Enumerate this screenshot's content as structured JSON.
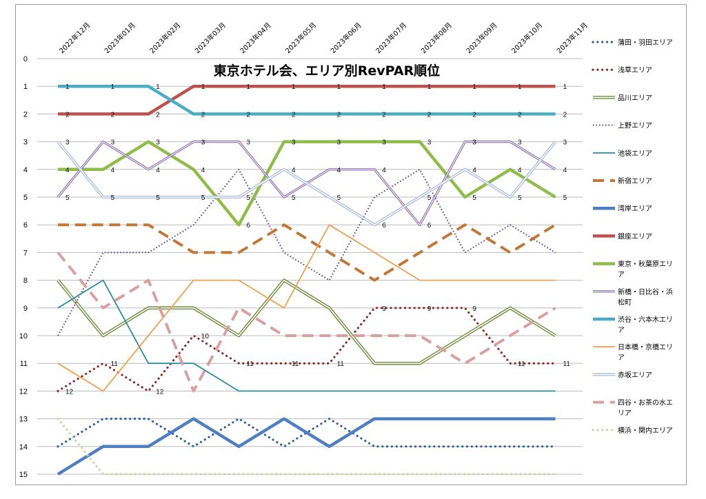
{
  "chart_data": {
    "type": "line",
    "title": "東京ホテル会、エリア別RevPAR順位",
    "categories": [
      "2022年12月",
      "2023年01月",
      "2023年02月",
      "2023年03月",
      "2023年04月",
      "2023年05月",
      "2023年06月",
      "2023年07月",
      "2023年08月",
      "2023年09月",
      "2023年10月",
      "2023年11月"
    ],
    "y_ticks": [
      "0",
      "1",
      "2",
      "3",
      "4",
      "5",
      "6",
      "7",
      "8",
      "9",
      "10",
      "11",
      "12",
      "13",
      "14",
      "15"
    ],
    "ylim": [
      0,
      15
    ],
    "y_reversed": true,
    "grid": true,
    "legend_position": "right",
    "series": [
      {
        "name": "蒲田・羽田エリア",
        "values": [
          14,
          13,
          13,
          14,
          13,
          14,
          13,
          14,
          14,
          14,
          14,
          14
        ],
        "color": "#2f5f9a",
        "style": "dotted",
        "width": 3.2
      },
      {
        "name": "浅草エリア",
        "values": [
          12,
          11,
          12,
          10,
          11,
          11,
          11,
          9,
          9,
          9,
          11,
          11
        ],
        "color": "#8b2a2a",
        "style": "dotted",
        "width": 3.2,
        "labels": [
          0,
          1,
          2,
          3,
          4,
          5,
          6,
          7,
          8,
          9,
          10,
          11
        ]
      },
      {
        "name": "品川エリア",
        "values": [
          8,
          10,
          9,
          9,
          10,
          8,
          9,
          11,
          11,
          10,
          9,
          10
        ],
        "color": "#6e8a3a",
        "style": "double",
        "width": 4.5
      },
      {
        "name": "上野エリア",
        "values": [
          10,
          7,
          7,
          6,
          4,
          7,
          8,
          5,
          4,
          7,
          6,
          7
        ],
        "color": "#4a3a7a",
        "style": "dotted",
        "width": 2
      },
      {
        "name": "池袋エリア",
        "values": [
          9,
          8,
          11,
          11,
          12,
          12,
          12,
          12,
          12,
          12,
          12,
          12
        ],
        "color": "#2e8b9a",
        "style": "solid",
        "width": 1.8
      },
      {
        "name": "新宿エリア",
        "values": [
          6,
          6,
          6,
          7,
          7,
          6,
          7,
          8,
          7,
          6,
          7,
          6
        ],
        "color": "#c0783a",
        "style": "dashed",
        "width": 4
      },
      {
        "name": "湾岸エリア",
        "values": [
          15,
          14,
          14,
          13,
          14,
          13,
          14,
          13,
          13,
          13,
          13,
          13
        ],
        "color": "#4f7fc0",
        "style": "solid",
        "width": 4.5
      },
      {
        "name": "銀座エリア",
        "values": [
          2,
          2,
          2,
          1,
          1,
          1,
          1,
          1,
          1,
          1,
          1,
          1
        ],
        "color": "#c0504d",
        "style": "solid",
        "width": 4.5,
        "labels": [
          0,
          1,
          2,
          3,
          4,
          5,
          6,
          7,
          8,
          9,
          10,
          11
        ]
      },
      {
        "name": "東京・秋葉原エリア",
        "values": [
          4,
          4,
          3,
          4,
          6,
          3,
          3,
          3,
          3,
          5,
          4,
          5
        ],
        "color": "#8fbc4a",
        "style": "solid",
        "width": 4.5
      },
      {
        "name": "新橋・日比谷・浜松町",
        "values": [
          5,
          3,
          4,
          3,
          3,
          5,
          4,
          4,
          6,
          3,
          3,
          4
        ],
        "color": "#7a5aa0",
        "style": "double",
        "width": 3.2
      },
      {
        "name": "渋谷・六本木エリア",
        "values": [
          1,
          1,
          1,
          2,
          2,
          2,
          2,
          2,
          2,
          2,
          2,
          2
        ],
        "color": "#4bacc6",
        "style": "solid",
        "width": 4.5,
        "labels": [
          0,
          1,
          2,
          3,
          4,
          5,
          6,
          7,
          8,
          9,
          10,
          11
        ]
      },
      {
        "name": "日本橋・京橋エリア",
        "values": [
          11,
          12,
          10,
          8,
          8,
          9,
          6,
          7,
          8,
          8,
          8,
          8
        ],
        "color": "#f0a050",
        "style": "solid",
        "width": 1.8
      },
      {
        "name": "赤坂エリア",
        "values": [
          3,
          5,
          5,
          5,
          5,
          4,
          5,
          6,
          5,
          4,
          5,
          3
        ],
        "color": "#a8b8d8",
        "style": "double",
        "width": 4
      },
      {
        "name": "四谷・お茶の水エリア",
        "values": [
          7,
          9,
          8,
          12,
          9,
          10,
          10,
          10,
          10,
          11,
          10,
          9
        ],
        "color": "#d8a0a0",
        "style": "dashed",
        "width": 4
      },
      {
        "name": "横浜・関内エリア",
        "values": [
          13,
          15,
          15,
          15,
          15,
          15,
          15,
          15,
          15,
          15,
          15,
          15
        ],
        "color": "#c4d8a0",
        "style": "dotted",
        "width": 3.2
      }
    ],
    "point_labels": [
      {
        "x": 0,
        "y": 1,
        "text": "1"
      },
      {
        "x": 1,
        "y": 1,
        "text": "1"
      },
      {
        "x": 2,
        "y": 1,
        "text": "1"
      },
      {
        "x": 3,
        "y": 1,
        "text": "1"
      },
      {
        "x": 4,
        "y": 1,
        "text": "1"
      },
      {
        "x": 5,
        "y": 1,
        "text": "1"
      },
      {
        "x": 6,
        "y": 1,
        "text": "1"
      },
      {
        "x": 7,
        "y": 1,
        "text": "1"
      },
      {
        "x": 8,
        "y": 1,
        "text": "1"
      },
      {
        "x": 9,
        "y": 1,
        "text": "1"
      },
      {
        "x": 10,
        "y": 1,
        "text": "1"
      },
      {
        "x": 11,
        "y": 1,
        "text": "1"
      },
      {
        "x": 0,
        "y": 2,
        "text": "2"
      },
      {
        "x": 1,
        "y": 2,
        "text": "2"
      },
      {
        "x": 2,
        "y": 2,
        "text": "2"
      },
      {
        "x": 3,
        "y": 2,
        "text": "2"
      },
      {
        "x": 4,
        "y": 2,
        "text": "2"
      },
      {
        "x": 5,
        "y": 2,
        "text": "2"
      },
      {
        "x": 6,
        "y": 2,
        "text": "2"
      },
      {
        "x": 7,
        "y": 2,
        "text": "2"
      },
      {
        "x": 8,
        "y": 2,
        "text": "2"
      },
      {
        "x": 9,
        "y": 2,
        "text": "2"
      },
      {
        "x": 10,
        "y": 2,
        "text": "2"
      },
      {
        "x": 11,
        "y": 2,
        "text": "2"
      },
      {
        "x": 0,
        "y": 3,
        "text": "3"
      },
      {
        "x": 1,
        "y": 3,
        "text": "3"
      },
      {
        "x": 2,
        "y": 3,
        "text": "3"
      },
      {
        "x": 3,
        "y": 3,
        "text": "3"
      },
      {
        "x": 4,
        "y": 3,
        "text": "3"
      },
      {
        "x": 5,
        "y": 3,
        "text": "3"
      },
      {
        "x": 6,
        "y": 3,
        "text": "3"
      },
      {
        "x": 7,
        "y": 3,
        "text": "3"
      },
      {
        "x": 8,
        "y": 3,
        "text": "3"
      },
      {
        "x": 9,
        "y": 3,
        "text": "3"
      },
      {
        "x": 10,
        "y": 3,
        "text": "3"
      },
      {
        "x": 11,
        "y": 3,
        "text": "3"
      },
      {
        "x": 0,
        "y": 4,
        "text": "4"
      },
      {
        "x": 1,
        "y": 4,
        "text": "4"
      },
      {
        "x": 2,
        "y": 4,
        "text": "4"
      },
      {
        "x": 3,
        "y": 4,
        "text": "4"
      },
      {
        "x": 5,
        "y": 4,
        "text": "4"
      },
      {
        "x": 6,
        "y": 4,
        "text": "4"
      },
      {
        "x": 7,
        "y": 4,
        "text": "4"
      },
      {
        "x": 9,
        "y": 4,
        "text": "4"
      },
      {
        "x": 10,
        "y": 4,
        "text": "4"
      },
      {
        "x": 11,
        "y": 4,
        "text": "4"
      },
      {
        "x": 0,
        "y": 5,
        "text": "5"
      },
      {
        "x": 1,
        "y": 5,
        "text": "5"
      },
      {
        "x": 2,
        "y": 5,
        "text": "5"
      },
      {
        "x": 3,
        "y": 5,
        "text": "5"
      },
      {
        "x": 4,
        "y": 5,
        "text": "5"
      },
      {
        "x": 5,
        "y": 5,
        "text": "5"
      },
      {
        "x": 6,
        "y": 5,
        "text": "5"
      },
      {
        "x": 8,
        "y": 5,
        "text": "5"
      },
      {
        "x": 9,
        "y": 5,
        "text": "5"
      },
      {
        "x": 10,
        "y": 5,
        "text": "5"
      },
      {
        "x": 11,
        "y": 5,
        "text": "5"
      },
      {
        "x": 4,
        "y": 6,
        "text": "6"
      },
      {
        "x": 7,
        "y": 6,
        "text": "6"
      },
      {
        "x": 8,
        "y": 6,
        "text": "6"
      },
      {
        "x": 7,
        "y": 9,
        "text": "9"
      },
      {
        "x": 8,
        "y": 9,
        "text": "9"
      },
      {
        "x": 9,
        "y": 9,
        "text": "9"
      },
      {
        "x": 3,
        "y": 10,
        "text": "10"
      },
      {
        "x": 1,
        "y": 11,
        "text": "11"
      },
      {
        "x": 4,
        "y": 11,
        "text": "11"
      },
      {
        "x": 5,
        "y": 11,
        "text": "11"
      },
      {
        "x": 6,
        "y": 11,
        "text": "11"
      },
      {
        "x": 10,
        "y": 11,
        "text": "11"
      },
      {
        "x": 11,
        "y": 11,
        "text": "11"
      },
      {
        "x": 0,
        "y": 12,
        "text": "12"
      },
      {
        "x": 2,
        "y": 12,
        "text": "12"
      }
    ]
  }
}
